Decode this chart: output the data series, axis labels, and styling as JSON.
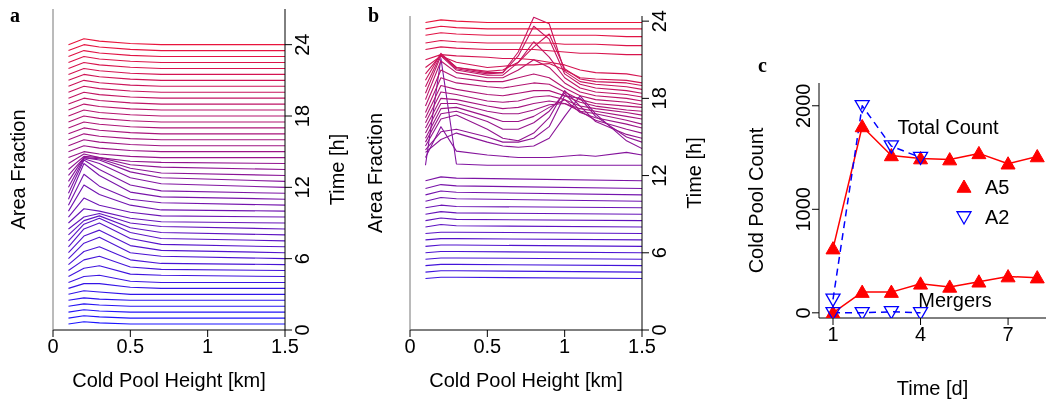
{
  "chart_data": [
    {
      "type": "line",
      "title": "a",
      "xlabel": "Cold Pool Height [km]",
      "ylabel": "Area Fraction",
      "y2label": "Time [h]",
      "xlim": [
        0,
        1.5
      ],
      "xticks": [
        0,
        0.5,
        1,
        1.5
      ],
      "y2lim": [
        0,
        27
      ],
      "y2ticks": [
        0,
        6,
        12,
        18,
        24
      ],
      "x": [
        0.1,
        0.2,
        0.3,
        0.5,
        0.7,
        1.5
      ],
      "series": [
        {
          "axis": "y2",
          "color": "#1a14ff",
          "values": [
            0.5,
            0.7,
            0.6,
            0.5,
            0.5,
            0.5
          ]
        },
        {
          "axis": "y2",
          "color": "#1e14fb",
          "values": [
            1,
            1.2,
            1.1,
            1,
            1,
            1
          ]
        },
        {
          "axis": "y2",
          "color": "#2314f7",
          "values": [
            1.5,
            1.7,
            1.6,
            1.5,
            1.5,
            1.5
          ]
        },
        {
          "axis": "y2",
          "color": "#2714f3",
          "values": [
            2,
            2.2,
            2.1,
            2,
            2,
            2
          ]
        },
        {
          "axis": "y2",
          "color": "#2c14ef",
          "values": [
            2.5,
            2.7,
            2.6,
            2.5,
            2.5,
            2.5
          ]
        },
        {
          "axis": "y2",
          "color": "#3014ea",
          "values": [
            3,
            3.3,
            3.2,
            3,
            3,
            3
          ]
        },
        {
          "axis": "y2",
          "color": "#3414e6",
          "values": [
            3.5,
            3.9,
            3.9,
            3.6,
            3.5,
            3.5
          ]
        },
        {
          "axis": "y2",
          "color": "#3b14e2",
          "values": [
            4,
            4.5,
            4.6,
            4.1,
            4,
            4
          ]
        },
        {
          "axis": "y2",
          "color": "#3f14de",
          "values": [
            4.5,
            5.2,
            5.4,
            4.7,
            4.6,
            4.5
          ]
        },
        {
          "axis": "y2",
          "color": "#4314da",
          "values": [
            5,
            5.9,
            6.2,
            5.3,
            5.1,
            5
          ]
        },
        {
          "axis": "y2",
          "color": "#4814d6",
          "values": [
            5.5,
            6.6,
            7,
            5.9,
            5.6,
            5.5
          ]
        },
        {
          "axis": "y2",
          "color": "#4c14d2",
          "values": [
            6,
            7.3,
            7.8,
            6.5,
            6.2,
            6
          ]
        },
        {
          "axis": "y2",
          "color": "#5114ce",
          "values": [
            6.5,
            7.9,
            8.4,
            7.1,
            6.7,
            6.5
          ]
        },
        {
          "axis": "y2",
          "color": "#5514ca",
          "values": [
            7,
            8.5,
            9,
            7.7,
            7.2,
            7
          ]
        },
        {
          "axis": "y2",
          "color": "#5a14c6",
          "values": [
            7.5,
            8.9,
            9.4,
            8.2,
            7.7,
            7.5
          ]
        },
        {
          "axis": "y2",
          "color": "#5e14c2",
          "values": [
            8,
            9.2,
            9.6,
            8.6,
            8.2,
            8
          ]
        },
        {
          "axis": "y2",
          "color": "#6214bd",
          "values": [
            8.5,
            9.5,
            9.8,
            9,
            8.7,
            8.5
          ]
        },
        {
          "axis": "y2",
          "color": "#6614b9",
          "values": [
            9,
            10.2,
            10,
            9.4,
            9.1,
            9
          ]
        },
        {
          "axis": "y2",
          "color": "#6b14b5",
          "values": [
            9.5,
            11.1,
            10.5,
            9.9,
            9.6,
            9.5
          ]
        },
        {
          "axis": "y2",
          "color": "#6f14b1",
          "values": [
            10,
            12.2,
            11.4,
            10.5,
            10.1,
            10
          ]
        },
        {
          "axis": "y2",
          "color": "#7414ad",
          "values": [
            10.5,
            13.1,
            12.1,
            11,
            10.7,
            10.5
          ]
        },
        {
          "axis": "y2",
          "color": "#7814a9",
          "values": [
            11,
            14,
            13,
            11.6,
            11.2,
            11
          ]
        },
        {
          "axis": "y2",
          "color": "#7c14a5",
          "values": [
            11.5,
            14.3,
            13.5,
            12.2,
            11.7,
            11.5
          ]
        },
        {
          "axis": "y2",
          "color": "#8114a1",
          "values": [
            12,
            14.4,
            14,
            12.8,
            12.3,
            12
          ]
        },
        {
          "axis": "y2",
          "color": "#85149c",
          "values": [
            12.5,
            14.5,
            14.3,
            13.3,
            12.8,
            12.5
          ]
        },
        {
          "axis": "y2",
          "color": "#8a1497",
          "values": [
            13,
            14.5,
            14.4,
            13.6,
            13.2,
            13
          ]
        },
        {
          "axis": "y2",
          "color": "#8e1493",
          "values": [
            13.5,
            14.6,
            14.5,
            13.9,
            13.7,
            13.5
          ]
        },
        {
          "axis": "y2",
          "color": "#92148f",
          "values": [
            14,
            14.8,
            14.5,
            14.2,
            14.1,
            14
          ]
        },
        {
          "axis": "y2",
          "color": "#97148b",
          "values": [
            14.5,
            15,
            14.8,
            14.6,
            14.5,
            14.5
          ]
        },
        {
          "axis": "y2",
          "color": "#9b1487",
          "values": [
            15,
            15.5,
            15.3,
            15.1,
            15,
            15
          ]
        },
        {
          "axis": "y2",
          "color": "#9f1483",
          "values": [
            15.5,
            16,
            15.8,
            15.6,
            15.5,
            15.5
          ]
        },
        {
          "axis": "y2",
          "color": "#a4147f",
          "values": [
            16,
            16.5,
            16.3,
            16.1,
            16,
            16
          ]
        },
        {
          "axis": "y2",
          "color": "#a8147b",
          "values": [
            16.5,
            17,
            16.8,
            16.6,
            16.5,
            16.5
          ]
        },
        {
          "axis": "y2",
          "color": "#ad1476",
          "values": [
            17,
            17.5,
            17.3,
            17.1,
            17,
            17
          ]
        },
        {
          "axis": "y2",
          "color": "#b11472",
          "values": [
            17.5,
            18,
            17.8,
            17.6,
            17.5,
            17.5
          ]
        },
        {
          "axis": "y2",
          "color": "#b5146e",
          "values": [
            18,
            18.5,
            18.3,
            18.1,
            18,
            18
          ]
        },
        {
          "axis": "y2",
          "color": "#ba146a",
          "values": [
            18.5,
            19,
            18.8,
            18.6,
            18.5,
            18.5
          ]
        },
        {
          "axis": "y2",
          "color": "#be1466",
          "values": [
            19,
            19.5,
            19.3,
            19.1,
            19,
            19
          ]
        },
        {
          "axis": "y2",
          "color": "#c21462",
          "values": [
            19.5,
            20,
            19.8,
            19.6,
            19.5,
            19.5
          ]
        },
        {
          "axis": "y2",
          "color": "#c7145e",
          "values": [
            20,
            20.5,
            20.3,
            20.1,
            20,
            20
          ]
        },
        {
          "axis": "y2",
          "color": "#cb145a",
          "values": [
            20.5,
            21,
            20.8,
            20.6,
            20.5,
            20.5
          ]
        },
        {
          "axis": "y2",
          "color": "#cf1455",
          "values": [
            21,
            21.5,
            21.3,
            21.1,
            21,
            21
          ]
        },
        {
          "axis": "y2",
          "color": "#d41451",
          "values": [
            21.5,
            22,
            21.8,
            21.6,
            21.5,
            21.5
          ]
        },
        {
          "axis": "y2",
          "color": "#d8144d",
          "values": [
            22,
            22.5,
            22.3,
            22.1,
            22,
            22
          ]
        },
        {
          "axis": "y2",
          "color": "#dc1449",
          "values": [
            22.5,
            23,
            22.8,
            22.6,
            22.5,
            22.5
          ]
        },
        {
          "axis": "y2",
          "color": "#e11445",
          "values": [
            23,
            23.5,
            23.3,
            23.1,
            23,
            23
          ]
        },
        {
          "axis": "y2",
          "color": "#e51441",
          "values": [
            23.5,
            24,
            23.8,
            23.6,
            23.5,
            23.5
          ]
        },
        {
          "axis": "y2",
          "color": "#e8143c",
          "values": [
            24,
            24.5,
            24.3,
            24.1,
            24,
            24
          ]
        }
      ]
    },
    {
      "type": "line",
      "title": "b",
      "xlabel": "Cold Pool Height [km]",
      "ylabel": "Area Fraction",
      "y2label": "Time [h]",
      "xlim": [
        0,
        1.5
      ],
      "xticks": [
        0,
        0.5,
        1,
        1.5
      ],
      "y2lim": [
        0,
        24.4
      ],
      "y2ticks": [
        0,
        6,
        12,
        18,
        24
      ],
      "x": [
        0.1,
        0.2,
        0.3,
        0.5,
        0.6,
        0.7,
        0.8,
        0.9,
        1.0,
        1.1,
        1.2,
        1.4,
        1.5
      ],
      "series": [
        {
          "axis": "y2",
          "color": "#3b14e2",
          "x": [
            0.1,
            0.2,
            0.3,
            1.5
          ],
          "values": [
            4,
            4.1,
            4.1,
            4
          ]
        },
        {
          "axis": "y2",
          "color": "#3f14de",
          "x": [
            0.1,
            0.2,
            0.3,
            1.5
          ],
          "values": [
            4.5,
            4.6,
            4.6,
            4.5
          ]
        },
        {
          "axis": "y2",
          "color": "#4314da",
          "x": [
            0.1,
            0.2,
            0.3,
            1.5
          ],
          "values": [
            5,
            5.1,
            5.1,
            5
          ]
        },
        {
          "axis": "y2",
          "color": "#4814d6",
          "x": [
            0.1,
            0.2,
            0.3,
            1.5
          ],
          "values": [
            5.5,
            5.6,
            5.6,
            5.5
          ]
        },
        {
          "axis": "y2",
          "color": "#4c14d2",
          "x": [
            0.1,
            0.2,
            0.3,
            1.5
          ],
          "values": [
            6,
            6.1,
            6.1,
            6
          ]
        },
        {
          "axis": "y2",
          "color": "#5114ce",
          "x": [
            0.1,
            0.2,
            0.3,
            1.5
          ],
          "values": [
            6.5,
            6.6,
            6.6,
            6.5
          ]
        },
        {
          "axis": "y2",
          "color": "#5514ca",
          "x": [
            0.1,
            0.2,
            0.3,
            1.5
          ],
          "values": [
            7,
            7.1,
            7.1,
            7
          ]
        },
        {
          "axis": "y2",
          "color": "#5a14c6",
          "x": [
            0.1,
            0.2,
            0.3,
            1.5
          ],
          "values": [
            7.5,
            7.6,
            7.6,
            7.5
          ]
        },
        {
          "axis": "y2",
          "color": "#5e14c2",
          "x": [
            0.1,
            0.2,
            0.3,
            1.5
          ],
          "values": [
            8,
            8.2,
            8.1,
            8
          ]
        },
        {
          "axis": "y2",
          "color": "#6214bd",
          "x": [
            0.1,
            0.2,
            0.3,
            1.5
          ],
          "values": [
            8.5,
            8.7,
            8.6,
            8.5
          ]
        },
        {
          "axis": "y2",
          "color": "#6614b9",
          "x": [
            0.1,
            0.2,
            0.3,
            1.5
          ],
          "values": [
            9,
            9.2,
            9.1,
            9
          ]
        },
        {
          "axis": "y2",
          "color": "#6b14b5",
          "x": [
            0.1,
            0.2,
            0.3,
            1.5
          ],
          "values": [
            9.5,
            9.7,
            9.6,
            9.5
          ]
        },
        {
          "axis": "y2",
          "color": "#6f14b1",
          "x": [
            0.1,
            0.2,
            0.3,
            1.5
          ],
          "values": [
            10,
            10.3,
            10.2,
            10
          ]
        },
        {
          "axis": "y2",
          "color": "#7414ad",
          "x": [
            0.1,
            0.2,
            0.3,
            1.5
          ],
          "values": [
            10.5,
            10.8,
            10.7,
            10.5
          ]
        },
        {
          "axis": "y2",
          "color": "#7814a9",
          "x": [
            0.1,
            0.2,
            0.3,
            1.5
          ],
          "values": [
            11,
            11.3,
            11.2,
            11
          ]
        },
        {
          "axis": "y2",
          "color": "#7c14a5",
          "x": [
            0.1,
            0.2,
            0.3,
            1.5
          ],
          "values": [
            11.6,
            11.9,
            11.8,
            11.6
          ]
        },
        {
          "axis": "y2",
          "color": "#8114a1",
          "values": [
            12.8,
            21.1,
            12.9,
            12.8,
            12.8,
            12.8,
            12.8,
            12.8,
            12.8,
            12.8,
            12.8,
            12.8,
            12.8
          ]
        },
        {
          "axis": "y2",
          "color": "#85149c",
          "values": [
            13.4,
            15.8,
            13.9,
            13.6,
            13.5,
            13.4,
            13.4,
            13.4,
            13.5,
            13.6,
            13.5,
            13.8,
            13.6
          ]
        },
        {
          "axis": "y2",
          "color": "#8a1497",
          "values": [
            13.8,
            14.8,
            15.3,
            14.6,
            14.3,
            14.2,
            14.3,
            14.9,
            16.6,
            18.2,
            16.8,
            14.7,
            14.1
          ]
        },
        {
          "axis": "y2",
          "color": "#8e1493",
          "values": [
            14,
            15.4,
            15.6,
            15,
            14.6,
            14.6,
            14.9,
            15.8,
            18.2,
            18,
            16.6,
            15,
            14.6
          ]
        },
        {
          "axis": "y2",
          "color": "#92148f",
          "values": [
            14.3,
            16.4,
            16.7,
            15.6,
            14.9,
            14.7,
            15.3,
            16.5,
            18.6,
            17.4,
            16.2,
            15.2,
            14.9
          ]
        },
        {
          "axis": "y2",
          "color": "#97148b",
          "values": [
            14.6,
            16.8,
            17,
            16.2,
            15.6,
            15.6,
            16.1,
            17,
            18.4,
            17,
            16.3,
            15.6,
            15.3
          ]
        },
        {
          "axis": "y2",
          "color": "#9b1487",
          "values": [
            14.9,
            17.2,
            17.3,
            16.6,
            16.2,
            16.2,
            16.6,
            17.3,
            17.9,
            16.9,
            16.5,
            16,
            15.7
          ]
        },
        {
          "axis": "y2",
          "color": "#9f1483",
          "values": [
            15.3,
            17.6,
            17.6,
            17,
            16.8,
            16.8,
            17.1,
            17.5,
            17.6,
            17,
            16.8,
            16.3,
            16
          ]
        },
        {
          "axis": "y2",
          "color": "#a4147f",
          "values": [
            15.7,
            18,
            17.9,
            17.4,
            17.2,
            17.3,
            17.6,
            17.8,
            17.6,
            17.2,
            17,
            16.6,
            16.4
          ]
        },
        {
          "axis": "y2",
          "color": "#a8147b",
          "values": [
            16.1,
            18.5,
            18.3,
            17.8,
            17.7,
            17.8,
            18.1,
            18.2,
            17.9,
            17.4,
            17.2,
            16.9,
            16.7
          ]
        },
        {
          "axis": "y2",
          "color": "#ad1476",
          "values": [
            16.5,
            19,
            18.7,
            18.3,
            18.2,
            18.4,
            18.6,
            18.6,
            18.2,
            17.7,
            17.4,
            17.1,
            17
          ]
        },
        {
          "axis": "y2",
          "color": "#b11472",
          "values": [
            16.9,
            19.6,
            19.2,
            18.9,
            18.8,
            19,
            19.2,
            19.1,
            18.5,
            17.9,
            17.6,
            17.4,
            17.3
          ]
        },
        {
          "axis": "y2",
          "color": "#b5146e",
          "values": [
            17.4,
            20.2,
            19.6,
            19.3,
            19.3,
            19.6,
            19.9,
            19.6,
            18.8,
            18.2,
            17.9,
            17.7,
            17.5
          ]
        },
        {
          "axis": "y2",
          "color": "#ba146a",
          "values": [
            17.9,
            20.9,
            20,
            19.6,
            19.6,
            20.2,
            21,
            20.4,
            19.2,
            18.5,
            18.2,
            18,
            17.8
          ]
        },
        {
          "axis": "y2",
          "color": "#be1466",
          "values": [
            18.4,
            21.3,
            20.2,
            19.8,
            19.8,
            20.8,
            22.4,
            21.2,
            19.6,
            18.8,
            18.5,
            18.3,
            18.1
          ]
        },
        {
          "axis": "y2",
          "color": "#c21462",
          "values": [
            18.9,
            21.4,
            20.3,
            19.9,
            20,
            21.3,
            23.6,
            22.6,
            19.9,
            19.1,
            18.8,
            18.6,
            18.4
          ]
        },
        {
          "axis": "y2",
          "color": "#c7145e",
          "values": [
            19.4,
            21.5,
            20.4,
            20,
            20,
            21.6,
            24.3,
            23.8,
            20.1,
            19.3,
            19.1,
            18.9,
            18.7
          ]
        },
        {
          "axis": "y2",
          "color": "#cb145a",
          "values": [
            19.9,
            21.4,
            20.4,
            20.1,
            20.2,
            20.8,
            22,
            23,
            20.3,
            19.5,
            19.3,
            19.2,
            19
          ]
        },
        {
          "axis": "y2",
          "color": "#cf1455",
          "values": [
            20.4,
            21.3,
            20.8,
            20.4,
            20.5,
            20.6,
            20.6,
            20.7,
            20.2,
            19.6,
            19.5,
            19.4,
            19.2
          ]
        },
        {
          "axis": "y2",
          "color": "#d41451",
          "values": [
            21,
            21.4,
            21.3,
            21.2,
            21.1,
            21.1,
            21,
            20.8,
            20.6,
            20.2,
            20,
            19.9,
            19.7
          ]
        },
        {
          "axis": "y2",
          "color": "#d8144d",
          "values": [
            21.8,
            22,
            21.9,
            21.8,
            21.8,
            21.8,
            21.8,
            21.7,
            21.6,
            21.5,
            21.5,
            21.4,
            21.4
          ]
        },
        {
          "axis": "y2",
          "color": "#dc1449",
          "values": [
            22.3,
            22.5,
            22.4,
            22.3,
            22.3,
            22.3,
            22.3,
            22.3,
            22.2,
            22.2,
            22.2,
            22.1,
            22.1
          ]
        },
        {
          "axis": "y2",
          "color": "#e11445",
          "values": [
            22.9,
            23.1,
            23,
            22.9,
            22.9,
            22.9,
            22.9,
            22.9,
            22.9,
            22.9,
            22.9,
            22.8,
            22.8
          ]
        },
        {
          "axis": "y2",
          "color": "#e51441",
          "values": [
            23.4,
            23.6,
            23.5,
            23.4,
            23.4,
            23.4,
            23.4,
            23.4,
            23.4,
            23.4,
            23.4,
            23.4,
            23.4
          ]
        },
        {
          "axis": "y2",
          "color": "#e8143c",
          "values": [
            23.9,
            24.1,
            24,
            23.9,
            23.9,
            23.9,
            23.9,
            23.9,
            23.9,
            23.9,
            23.9,
            23.9,
            23.9
          ]
        }
      ]
    },
    {
      "type": "line",
      "title": "c",
      "xlabel": "Time [d]",
      "ylabel": "Cold Pool Count",
      "xlim": [
        0.52,
        8.3
      ],
      "xticks": [
        1,
        4,
        7
      ],
      "ylim": [
        -50,
        2220
      ],
      "yticks": [
        0,
        1000,
        2000
      ],
      "legend": "right",
      "x": [
        1,
        2,
        3,
        4,
        5,
        6,
        7,
        8
      ],
      "annotations": [
        "Total Count",
        "Mergers"
      ],
      "series": [
        {
          "name": "A5",
          "color": "#ff0000",
          "marker": "triangle",
          "values": [
            620,
            1800,
            1520,
            1490,
            1480,
            1540,
            1440,
            1510
          ]
        },
        {
          "color": "#ff0000",
          "marker": "triangle",
          "values": [
            0,
            200,
            200,
            280,
            250,
            300,
            350,
            340
          ]
        },
        {
          "name": "A2",
          "color": "#0000ff",
          "marker": "triangle-down",
          "line_style": "dashed",
          "x": [
            1,
            2,
            3,
            4
          ],
          "values": [
            130,
            2000,
            1610,
            1500
          ]
        },
        {
          "color": "#0000ff",
          "marker": "triangle-down",
          "line_style": "dashed",
          "x": [
            1,
            2,
            3,
            4
          ],
          "values": [
            0,
            0,
            10,
            0
          ]
        }
      ]
    }
  ]
}
